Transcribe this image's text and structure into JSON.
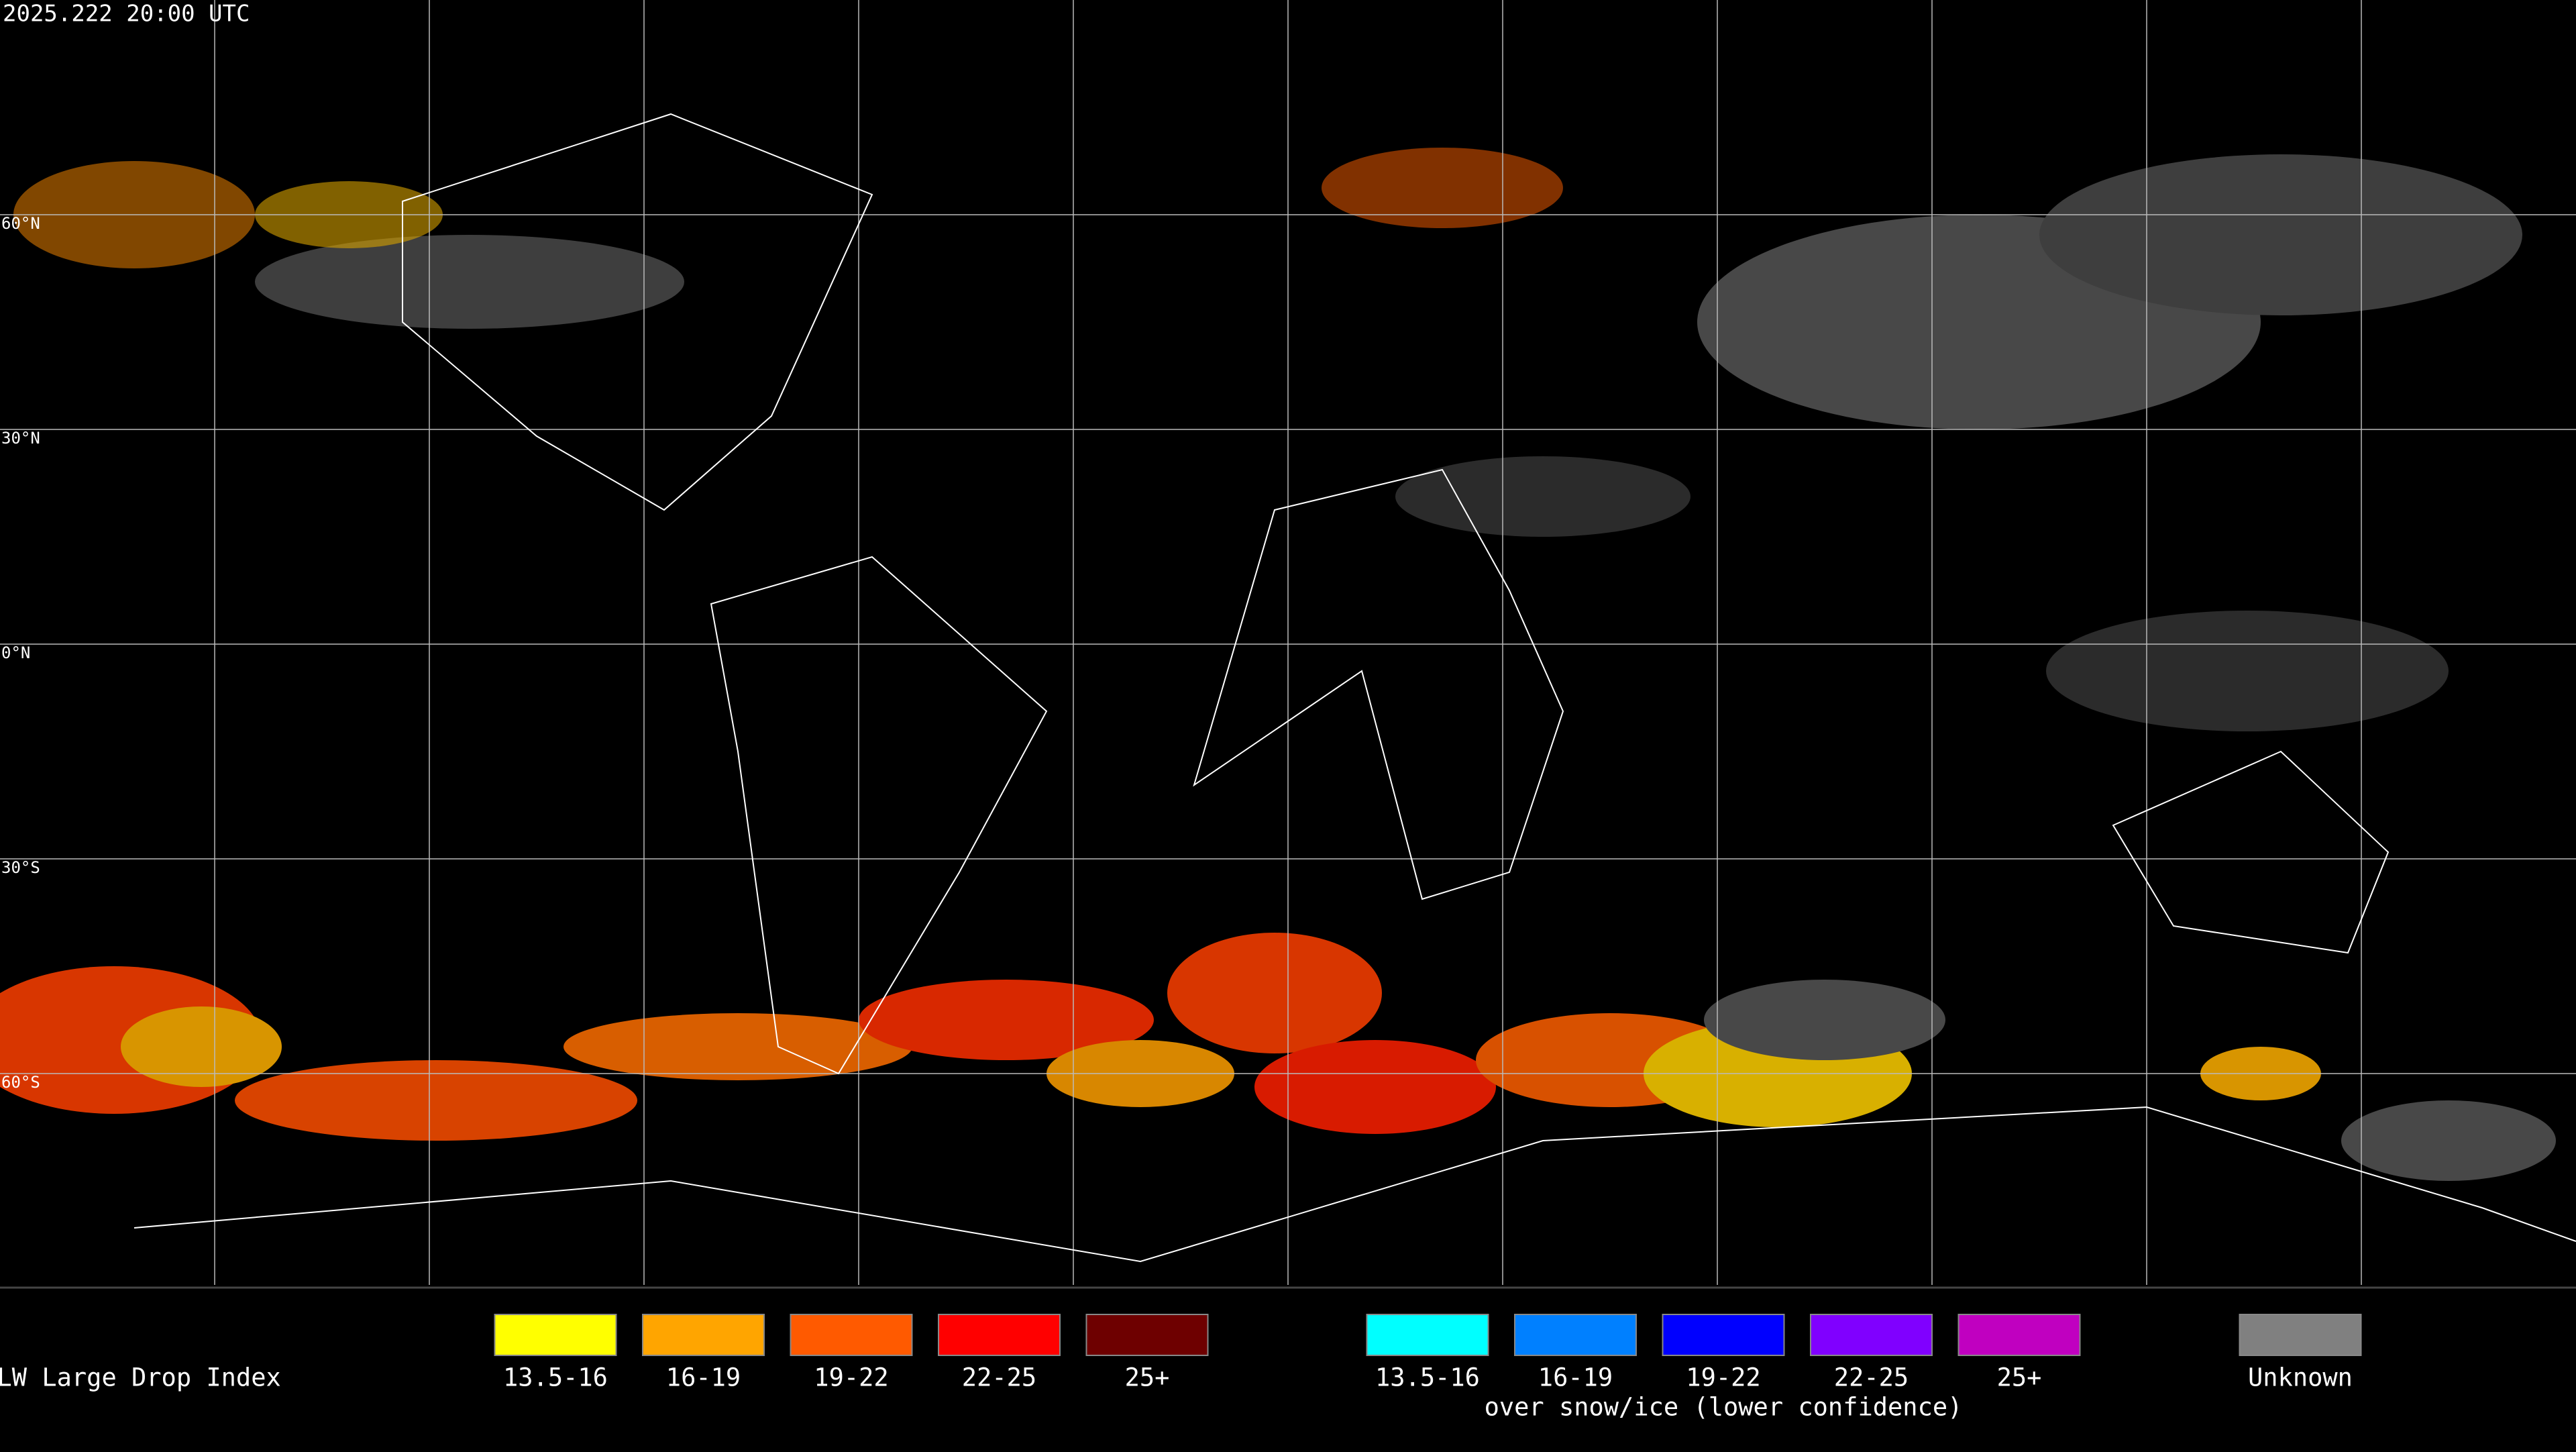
{
  "timestamp": "2025.222 20:00 UTC",
  "latitude_labels": [
    "60°N",
    "30°N",
    "0°N",
    "30°S",
    "60°S"
  ],
  "legend": {
    "title": "SLW Large Drop Index",
    "groups": [
      {
        "items": [
          {
            "label": "13.5-16",
            "color": "#ffff00"
          },
          {
            "label": "16-19",
            "color": "#ffa500"
          },
          {
            "label": "19-22",
            "color": "#ff5a00"
          },
          {
            "label": "22-25",
            "color": "#ff0000"
          },
          {
            "label": "25+",
            "color": "#6e0000"
          }
        ]
      },
      {
        "items": [
          {
            "label": "13.5-16",
            "color": "#00ffff"
          },
          {
            "label": "16-19",
            "color": "#0080ff"
          },
          {
            "label": "19-22",
            "color": "#0000ff"
          },
          {
            "label": "22-25",
            "color": "#8000ff"
          },
          {
            "label": "25+",
            "color": "#c000c0"
          }
        ],
        "caption": "over snow/ice (lower confidence)"
      },
      {
        "items": [
          {
            "label": "Unknown",
            "color": "#808080"
          }
        ]
      }
    ]
  }
}
